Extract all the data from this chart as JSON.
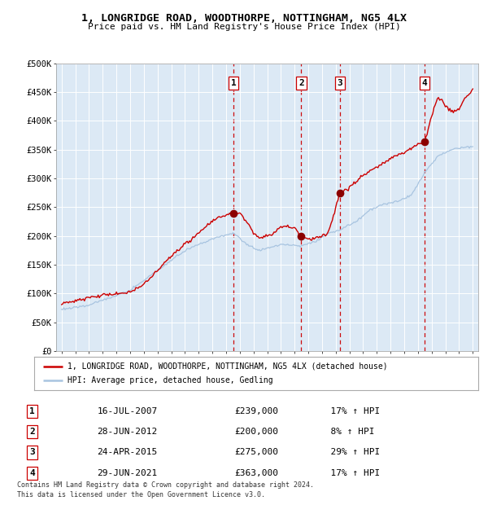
{
  "title_line1": "1, LONGRIDGE ROAD, WOODTHORPE, NOTTINGHAM, NG5 4LX",
  "title_line2": "Price paid vs. HM Land Registry's House Price Index (HPI)",
  "background_color": "#dce9f5",
  "plot_bg_color": "#dce9f5",
  "outer_bg_color": "#ffffff",
  "hpi_line_color": "#a8c4e0",
  "price_line_color": "#cc0000",
  "sale_marker_color": "#8b0000",
  "dashed_line_color": "#cc0000",
  "ylim": [
    0,
    500000
  ],
  "yticks": [
    0,
    50000,
    100000,
    150000,
    200000,
    250000,
    300000,
    350000,
    400000,
    450000,
    500000
  ],
  "ytick_labels": [
    "£0",
    "£50K",
    "£100K",
    "£150K",
    "£200K",
    "£250K",
    "£300K",
    "£350K",
    "£400K",
    "£450K",
    "£500K"
  ],
  "xlim_start": 1994.6,
  "xlim_end": 2025.4,
  "sales": [
    {
      "num": 1,
      "date": "16-JUL-2007",
      "year": 2007.54,
      "price": 239000,
      "hpi_pct": "17%",
      "hpi_dir": "↑"
    },
    {
      "num": 2,
      "date": "28-JUN-2012",
      "year": 2012.49,
      "price": 200000,
      "hpi_pct": "8%",
      "hpi_dir": "↑"
    },
    {
      "num": 3,
      "date": "24-APR-2015",
      "year": 2015.31,
      "price": 275000,
      "hpi_pct": "29%",
      "hpi_dir": "↑"
    },
    {
      "num": 4,
      "date": "29-JUN-2021",
      "year": 2021.49,
      "price": 363000,
      "hpi_pct": "17%",
      "hpi_dir": "↑"
    }
  ],
  "legend_label1": "1, LONGRIDGE ROAD, WOODTHORPE, NOTTINGHAM, NG5 4LX (detached house)",
  "legend_label2": "HPI: Average price, detached house, Gedling",
  "footnote1": "Contains HM Land Registry data © Crown copyright and database right 2024.",
  "footnote2": "This data is licensed under the Open Government Licence v3.0.",
  "hpi_anchors": {
    "1995.0": 72000,
    "1997.0": 80000,
    "2000.0": 105000,
    "2002.0": 140000,
    "2004.0": 175000,
    "2006.0": 195000,
    "2007.54": 205000,
    "2008.5": 185000,
    "2009.5": 175000,
    "2011.0": 185000,
    "2012.5": 183000,
    "2013.5": 190000,
    "2014.5": 205000,
    "2015.3": 210000,
    "2016.5": 225000,
    "2017.5": 245000,
    "2018.5": 255000,
    "2019.5": 260000,
    "2020.5": 270000,
    "2021.5": 310000,
    "2022.5": 340000,
    "2023.0": 345000,
    "2023.5": 350000,
    "2024.0": 352000,
    "2025.0": 355000
  },
  "price_anchors": {
    "1995.0": 82000,
    "1996.0": 87000,
    "1997.0": 92000,
    "1998.0": 97000,
    "1999.0": 99000,
    "2000.0": 103000,
    "2001.0": 115000,
    "2002.0": 140000,
    "2003.0": 165000,
    "2004.5": 195000,
    "2005.5": 215000,
    "2006.0": 225000,
    "2006.5": 232000,
    "2007.54": 239000,
    "2008.0": 240000,
    "2008.5": 225000,
    "2009.0": 205000,
    "2009.5": 195000,
    "2010.0": 200000,
    "2010.5": 205000,
    "2011.0": 215000,
    "2011.5": 218000,
    "2012.0": 212000,
    "2012.49": 200000,
    "2012.8": 195000,
    "2013.5": 195000,
    "2014.0": 200000,
    "2014.5": 208000,
    "2015.31": 275000,
    "2015.8": 280000,
    "2016.5": 295000,
    "2017.0": 305000,
    "2018.0": 320000,
    "2019.0": 335000,
    "2020.0": 345000,
    "2021.0": 358000,
    "2021.49": 363000,
    "2021.8": 390000,
    "2022.0": 410000,
    "2022.3": 430000,
    "2022.5": 440000,
    "2022.8": 435000,
    "2023.0": 425000,
    "2023.5": 415000,
    "2024.0": 420000,
    "2024.5": 440000,
    "2025.0": 455000
  }
}
